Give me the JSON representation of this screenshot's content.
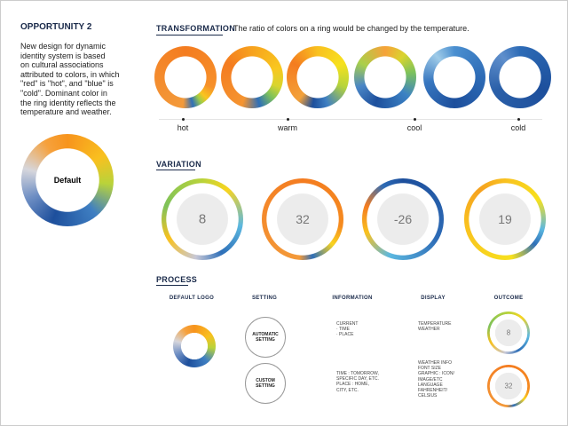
{
  "intro": {
    "title": "OPPORTUNITY 2",
    "lines": [
      "New design for dynamic",
      "identity system is based",
      "on cultural associations",
      "attributed to colors, in which",
      "\"red\" is \"hot\", and \"blue\" is",
      "\"cold\". Dominant color in",
      "the ring identity reflects the",
      "temperature and weather."
    ],
    "ring_label": "Default"
  },
  "transformation": {
    "heading": "TRANSFORMATION",
    "caption": "The ratio of colors on a ring would be changed by the temperature.",
    "scale": [
      "hot",
      "warm",
      "cool",
      "cold"
    ]
  },
  "variation": {
    "heading": "VARIATION",
    "rings": [
      "8",
      "32",
      "-26",
      "19"
    ]
  },
  "process": {
    "heading": "PROCESS",
    "columns": [
      "DEFAULT LOGO",
      "SETTING",
      "INFORMATION",
      "DISPLAY",
      "OUTCOME"
    ],
    "settings": [
      "AUTOMATIC SETTING",
      "CUSTOM SETTING"
    ],
    "information": [
      [
        "CURRENT",
        "· TIME",
        "· PLACE"
      ],
      [
        "TIME : TOMORROW,",
        "SPECIFIC DAY, ETC.",
        "PLACE : HOME,",
        "CITY, ETC."
      ]
    ],
    "display": [
      [
        "TEMPERATURE",
        "WEATHER"
      ],
      [
        "WEATHER INFO",
        "FONT SIZE",
        "GRAPHIC : ICON/",
        "IMAGE/ETC",
        "LANGUAGE",
        "FAHRENHEIT/",
        "CELSIUS"
      ]
    ],
    "outcome": [
      "8",
      "32"
    ]
  }
}
